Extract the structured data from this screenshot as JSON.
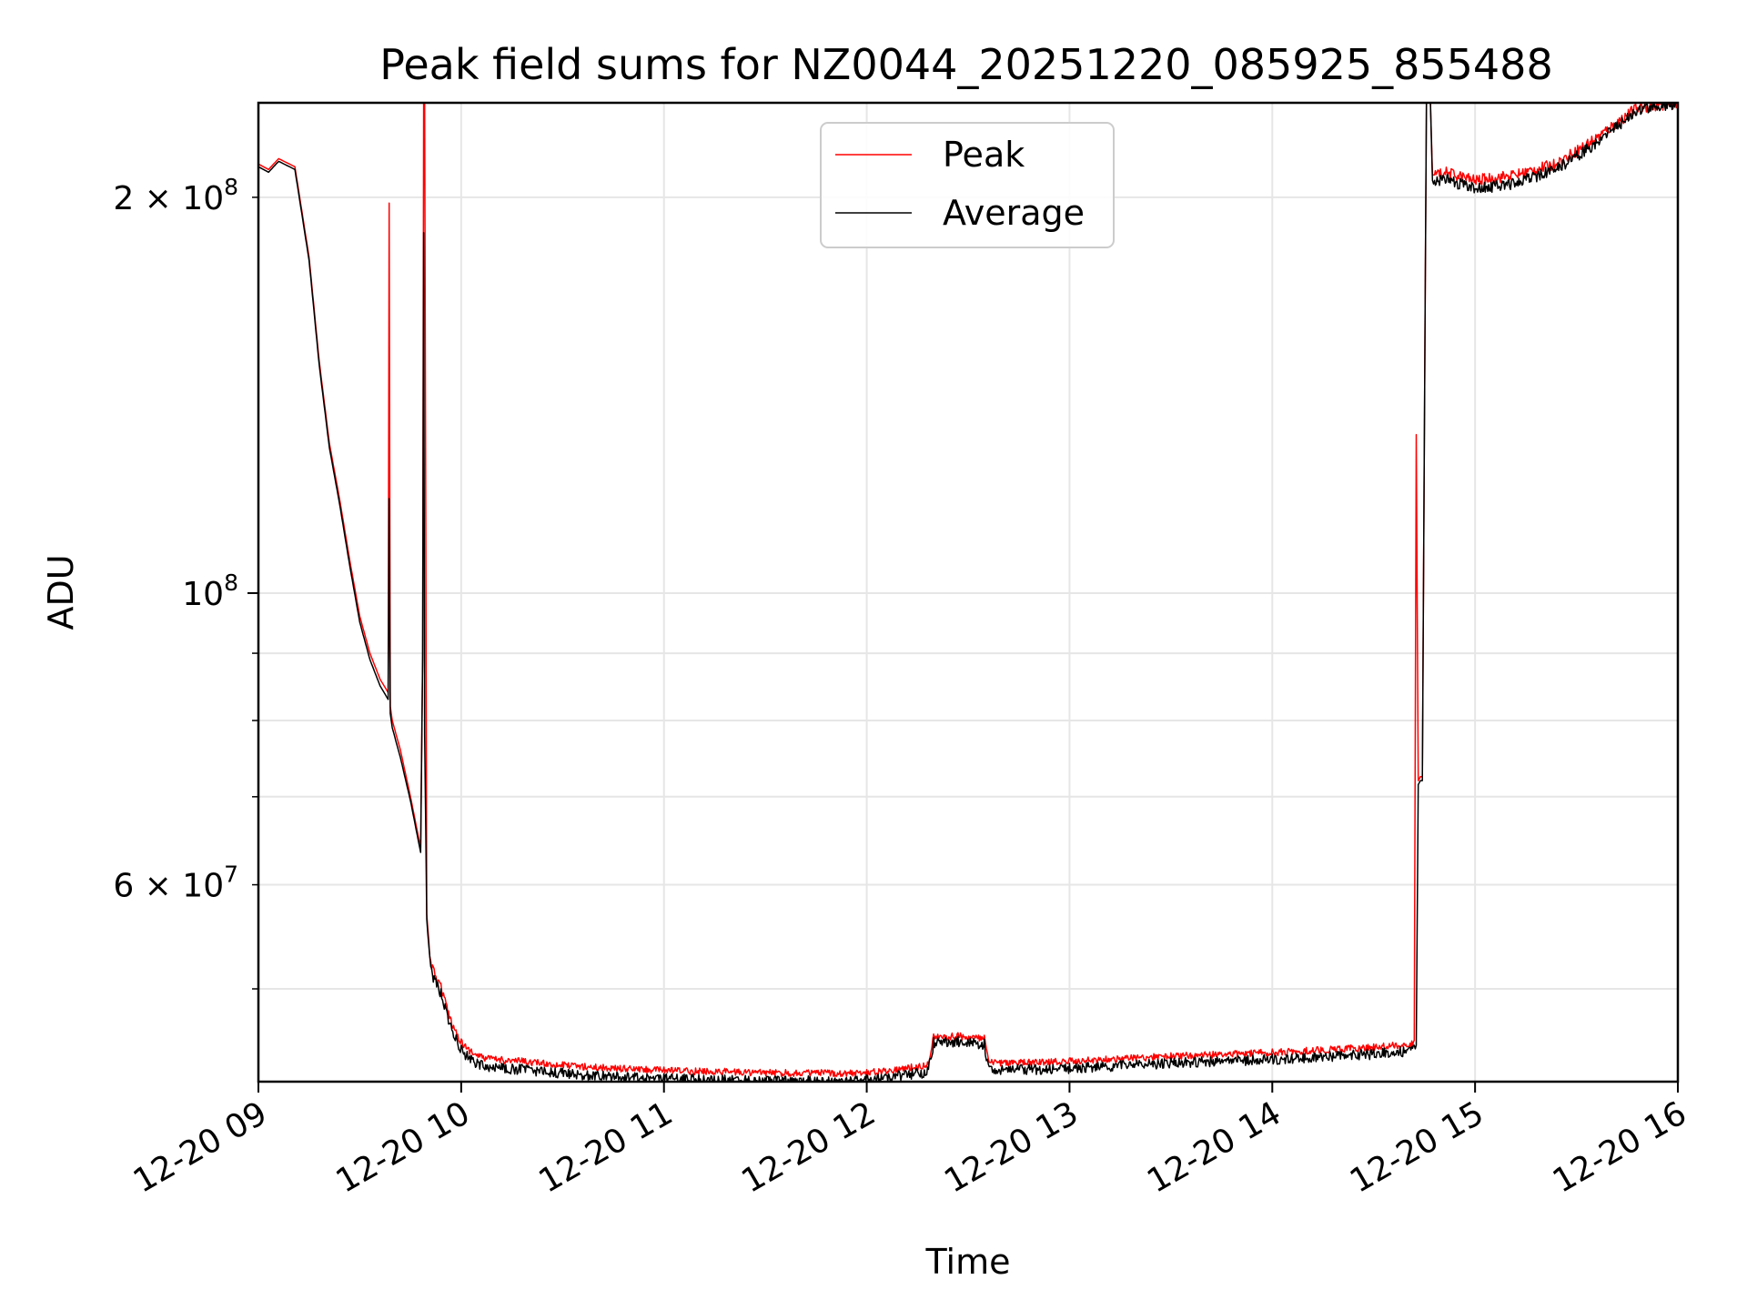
{
  "chart_data": {
    "type": "line",
    "title": "Peak field sums for NZ0044_20251220_085925_855488",
    "xlabel": "Time",
    "ylabel": "ADU",
    "yscale": "log",
    "xlim": [
      9.0,
      16.0
    ],
    "ylim": [
      42500000,
      236000000
    ],
    "x_ticks": [
      {
        "value": 9,
        "label": "12-20 09"
      },
      {
        "value": 10,
        "label": "12-20 10"
      },
      {
        "value": 11,
        "label": "12-20 11"
      },
      {
        "value": 12,
        "label": "12-20 12"
      },
      {
        "value": 13,
        "label": "12-20 13"
      },
      {
        "value": 14,
        "label": "12-20 14"
      },
      {
        "value": 15,
        "label": "12-20 15"
      },
      {
        "value": 16,
        "label": "12-20 16"
      }
    ],
    "y_ticks_major": [
      {
        "value": 100000000,
        "label_base": "10",
        "label_exp": "8"
      }
    ],
    "y_ticks_minor": [
      {
        "value": 50000000,
        "label_base": "",
        "label_exp": ""
      },
      {
        "value": 60000000,
        "label_base": "6 × 10",
        "label_exp": "7"
      },
      {
        "value": 70000000,
        "label_base": "",
        "label_exp": ""
      },
      {
        "value": 80000000,
        "label_base": "",
        "label_exp": ""
      },
      {
        "value": 90000000,
        "label_base": "",
        "label_exp": ""
      },
      {
        "value": 200000000,
        "label_base": "2 × 10",
        "label_exp": "8"
      }
    ],
    "legend": {
      "position": "top-center",
      "entries": [
        "Peak",
        "Average"
      ]
    },
    "series": [
      {
        "name": "Peak",
        "color": "#ff0000",
        "x": [
          9.0,
          9.05,
          9.1,
          9.18,
          9.25,
          9.3,
          9.35,
          9.4,
          9.45,
          9.5,
          9.55,
          9.6,
          9.64,
          9.645,
          9.65,
          9.66,
          9.7,
          9.75,
          9.8,
          9.81,
          9.815,
          9.82,
          9.83,
          9.84,
          9.85,
          9.9,
          9.95,
          10.0,
          10.05,
          10.1,
          10.2,
          10.3,
          10.5,
          10.7,
          11.0,
          11.3,
          11.6,
          12.0,
          12.3,
          12.33,
          12.45,
          12.58,
          12.6,
          12.8,
          13.0,
          13.5,
          14.0,
          14.5,
          14.7,
          14.71,
          14.72,
          14.73,
          14.74,
          14.76,
          14.78,
          14.79,
          14.8,
          14.85,
          15.0,
          15.1,
          15.2,
          15.4,
          15.6,
          15.8,
          16.0
        ],
        "values": [
          212000000,
          210000000,
          214000000,
          211000000,
          180000000,
          150000000,
          130000000,
          118000000,
          106000000,
          96000000,
          90000000,
          86000000,
          84000000,
          198000000,
          82000000,
          80000000,
          76000000,
          70000000,
          64000000,
          90000000,
          236000000,
          236000000,
          57000000,
          54500000,
          52500000,
          50500000,
          47500000,
          45800000,
          45000000,
          44600000,
          44400000,
          44300000,
          44000000,
          43800000,
          43600000,
          43500000,
          43400000,
          43400000,
          44000000,
          46200000,
          46300000,
          46100000,
          44200000,
          44200000,
          44300000,
          44700000,
          45000000,
          45400000,
          45700000,
          132000000,
          72000000,
          72500000,
          72500000,
          236000000,
          236000000,
          208000000,
          208000000,
          209000000,
          206000000,
          207000000,
          208000000,
          212000000,
          222000000,
          234000000,
          236000000
        ]
      },
      {
        "name": "Average",
        "color": "#000000",
        "x": [
          9.0,
          9.05,
          9.1,
          9.18,
          9.25,
          9.3,
          9.35,
          9.4,
          9.45,
          9.5,
          9.55,
          9.6,
          9.64,
          9.645,
          9.65,
          9.66,
          9.7,
          9.75,
          9.8,
          9.81,
          9.815,
          9.82,
          9.83,
          9.84,
          9.85,
          9.9,
          9.95,
          10.0,
          10.05,
          10.1,
          10.2,
          10.3,
          10.5,
          10.7,
          11.0,
          11.3,
          11.6,
          12.0,
          12.3,
          12.33,
          12.45,
          12.58,
          12.6,
          12.8,
          13.0,
          13.5,
          14.0,
          14.5,
          14.7,
          14.71,
          14.72,
          14.73,
          14.74,
          14.76,
          14.78,
          14.79,
          14.8,
          14.85,
          15.0,
          15.1,
          15.2,
          15.4,
          15.6,
          15.8,
          16.0
        ],
        "values": [
          211000000,
          209000000,
          213000000,
          210000000,
          179000000,
          149000000,
          129000000,
          117000000,
          105000000,
          95000000,
          89000000,
          85000000,
          83000000,
          118000000,
          81000000,
          79000000,
          75000000,
          69500000,
          63500000,
          89000000,
          188000000,
          78000000,
          56500000,
          54000000,
          52000000,
          50000000,
          47000000,
          45300000,
          44500000,
          44100000,
          43900000,
          43800000,
          43500000,
          43300000,
          43100000,
          43000000,
          42900000,
          43000000,
          43600000,
          45900000,
          46000000,
          45800000,
          43800000,
          43800000,
          43900000,
          44300000,
          44600000,
          45000000,
          45300000,
          45300000,
          71500000,
          72000000,
          72000000,
          236000000,
          236000000,
          206000000,
          206000000,
          206500000,
          203000000,
          204000000,
          205000000,
          210000000,
          220000000,
          233000000,
          236000000
        ]
      }
    ]
  }
}
